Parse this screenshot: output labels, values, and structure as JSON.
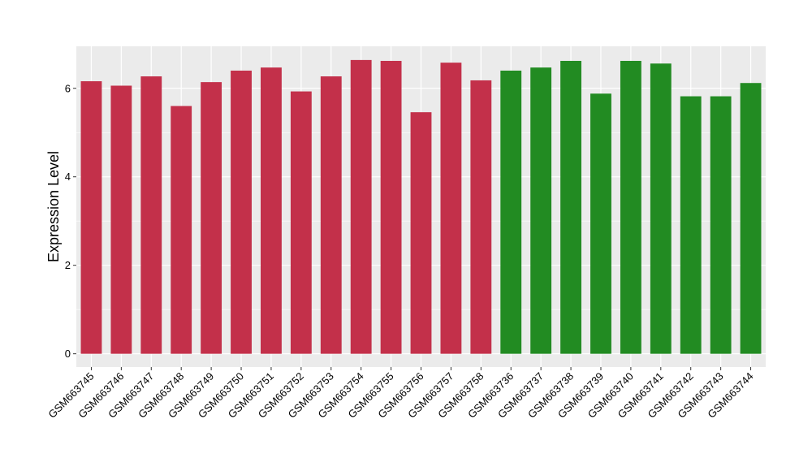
{
  "chart_data": {
    "type": "bar",
    "ylabel": "Expression Level",
    "xlabel": "",
    "ylim": [
      -0.3,
      6.95
    ],
    "yticks": [
      0,
      2,
      4,
      6
    ],
    "grid": true,
    "colors": {
      "group1": "#c3304a",
      "group2": "#228b22",
      "panel": "#ebebeb",
      "grid": "#ffffff"
    },
    "categories": [
      "GSM663745",
      "GSM663746",
      "GSM663747",
      "GSM663748",
      "GSM663749",
      "GSM663750",
      "GSM663751",
      "GSM663752",
      "GSM663753",
      "GSM663754",
      "GSM663755",
      "GSM663756",
      "GSM663757",
      "GSM663758",
      "GSM663736",
      "GSM663737",
      "GSM663738",
      "GSM663739",
      "GSM663740",
      "GSM663741",
      "GSM663742",
      "GSM663743",
      "GSM663744"
    ],
    "values": [
      6.16,
      6.06,
      6.27,
      5.6,
      6.14,
      6.4,
      6.47,
      5.93,
      6.27,
      6.64,
      6.62,
      5.46,
      6.58,
      6.18,
      6.4,
      6.47,
      6.62,
      5.88,
      6.62,
      6.56,
      5.82,
      5.82,
      6.12
    ],
    "groups": [
      1,
      1,
      1,
      1,
      1,
      1,
      1,
      1,
      1,
      1,
      1,
      1,
      1,
      1,
      2,
      2,
      2,
      2,
      2,
      2,
      2,
      2,
      2
    ]
  }
}
